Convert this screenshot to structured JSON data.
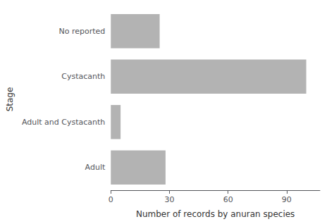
{
  "chart_data": {
    "type": "bar",
    "orientation": "horizontal",
    "categories": [
      "Adult",
      "Adult and Cystacanth",
      "Cystacanth",
      "No reported"
    ],
    "values": [
      28,
      5,
      100,
      25
    ],
    "color": "#b3b3b3",
    "xlabel": "Number of records by anuran species",
    "ylabel": "Stage",
    "xlim": [
      0,
      107
    ],
    "xticks": [
      0,
      30,
      60,
      90
    ],
    "grid": false
  }
}
